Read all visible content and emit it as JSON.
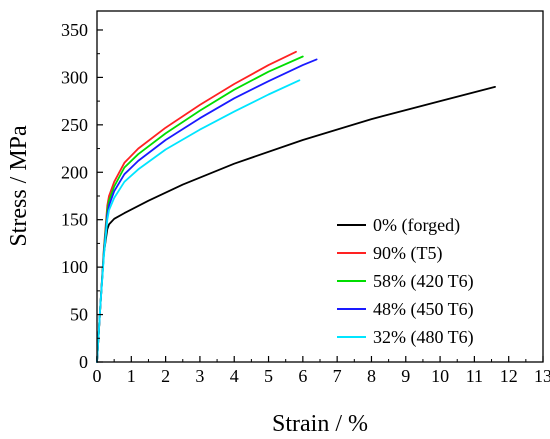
{
  "chart_data": {
    "type": "line",
    "title": "",
    "xlabel": "Strain / %",
    "ylabel": "Stress / MPa",
    "xlim": [
      0,
      13
    ],
    "ylim": [
      0,
      370
    ],
    "xticks": [
      "0",
      "1",
      "2",
      "3",
      "4",
      "5",
      "6",
      "7",
      "8",
      "9",
      "10",
      "11",
      "12",
      "13"
    ],
    "yticks": [
      "0",
      "50",
      "100",
      "150",
      "200",
      "250",
      "300",
      "350"
    ],
    "grid": false,
    "legend_position": "bottom-right",
    "series": [
      {
        "name": "0% (forged)",
        "color": "#000000",
        "x": [
          0,
          0.1,
          0.2,
          0.3,
          0.35,
          0.5,
          0.8,
          1.5,
          2.5,
          4,
          6,
          8,
          10,
          11.6
        ],
        "y": [
          0,
          60,
          115,
          140,
          145,
          151,
          157,
          170,
          187,
          209,
          234,
          256,
          275,
          290
        ]
      },
      {
        "name": "90% (T5)",
        "color": "#ff2222",
        "x": [
          0,
          0.1,
          0.2,
          0.3,
          0.35,
          0.5,
          0.8,
          1.2,
          2,
          3,
          4,
          5,
          5.8
        ],
        "y": [
          0,
          60,
          120,
          165,
          175,
          190,
          210,
          225,
          247,
          271,
          293,
          313,
          327
        ]
      },
      {
        "name": "58% (420 T6)",
        "color": "#00dd00",
        "x": [
          0,
          0.1,
          0.2,
          0.3,
          0.35,
          0.5,
          0.8,
          1.2,
          2,
          3,
          4,
          5,
          6
        ],
        "y": [
          0,
          60,
          118,
          160,
          170,
          185,
          205,
          219,
          241,
          265,
          287,
          306,
          322
        ]
      },
      {
        "name": "48% (450 T6)",
        "color": "#1a1aff",
        "x": [
          0,
          0.1,
          0.2,
          0.3,
          0.35,
          0.5,
          0.8,
          1.2,
          2,
          3,
          4,
          5,
          6,
          6.4
        ],
        "y": [
          0,
          60,
          115,
          155,
          165,
          180,
          198,
          212,
          234,
          257,
          278,
          296,
          313,
          319
        ]
      },
      {
        "name": "32% (480 T6)",
        "color": "#00e5ff",
        "x": [
          0,
          0.1,
          0.2,
          0.3,
          0.35,
          0.5,
          0.8,
          1.2,
          2,
          3,
          4,
          5,
          5.9
        ],
        "y": [
          0,
          60,
          112,
          150,
          160,
          173,
          190,
          203,
          224,
          245,
          264,
          282,
          297
        ]
      }
    ]
  }
}
